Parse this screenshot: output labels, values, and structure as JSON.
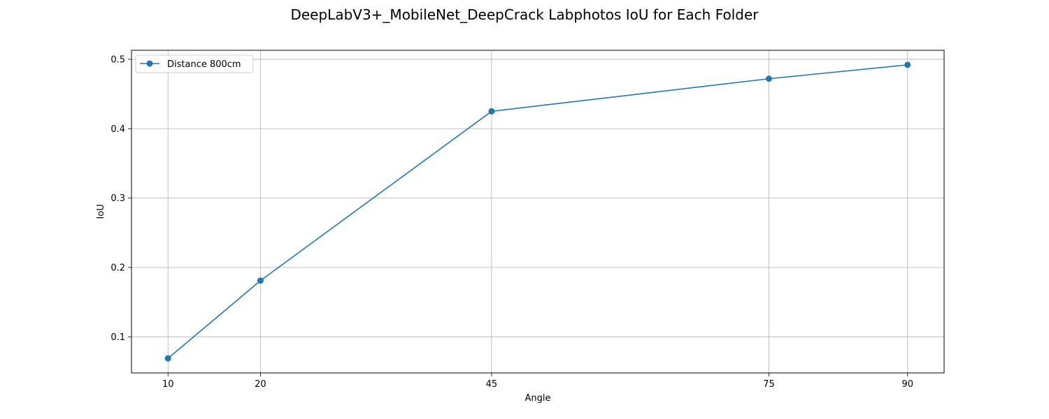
{
  "chart_data": {
    "type": "line",
    "title": "DeepLabV3+_MobileNet_DeepCrack Labphotos IoU for Each Folder",
    "xlabel": "Angle",
    "ylabel": "IoU",
    "x": [
      10,
      20,
      45,
      75,
      90
    ],
    "x_ticks": [
      10,
      20,
      45,
      75,
      90
    ],
    "y_ticks": [
      0.1,
      0.2,
      0.3,
      0.4,
      0.5
    ],
    "xlim": [
      6.05,
      93.95
    ],
    "ylim": [
      0.048,
      0.513
    ],
    "grid": true,
    "legend_position": "upper left",
    "series": [
      {
        "name": "Distance 800cm",
        "color": "#1f77b4",
        "marker": "circle",
        "values": [
          0.069,
          0.181,
          0.425,
          0.472,
          0.492
        ]
      }
    ]
  }
}
